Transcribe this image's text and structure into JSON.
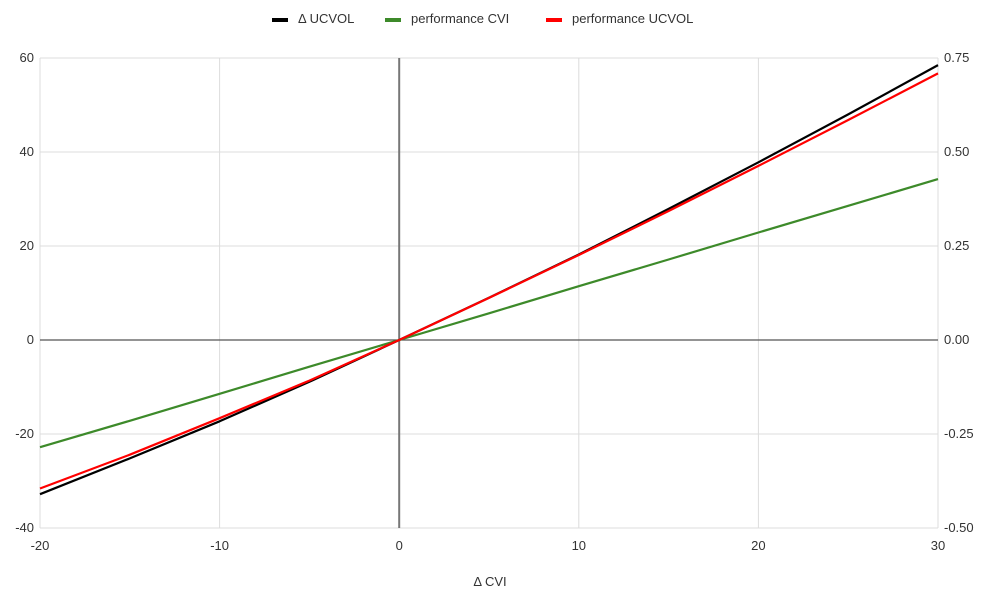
{
  "chart_data": {
    "type": "line",
    "title": "",
    "xlabel": "Δ CVI",
    "ylabel": "",
    "xlim": [
      -20,
      30
    ],
    "ylim": [
      -40,
      60
    ],
    "y2lim": [
      -0.5,
      0.75
    ],
    "x_ticks": [
      -20,
      -10,
      0,
      10,
      20,
      30
    ],
    "x_tick_labels": [
      "-20",
      "-10",
      "0",
      "10",
      "20",
      "30"
    ],
    "y_ticks": [
      -40,
      -20,
      0,
      20,
      40,
      60
    ],
    "y_tick_labels": [
      "-40",
      "-20",
      "0",
      "20",
      "40",
      "60"
    ],
    "y2_ticks": [
      -0.5,
      -0.25,
      0,
      0.25,
      0.5,
      0.75
    ],
    "y2_tick_labels": [
      "-0.50",
      "-0.25",
      "0.00",
      "0.25",
      "0.50",
      "0.75"
    ],
    "grid": true,
    "legend_position": "top-center",
    "series": [
      {
        "name": "Δ UCVOL",
        "color": "#000000",
        "axis": "left",
        "x": [
          -20,
          -15,
          -10,
          -5,
          0,
          5,
          10,
          15,
          20,
          25,
          30
        ],
        "y": [
          -32.8,
          -25.2,
          -17.3,
          -8.9,
          0,
          9.0,
          18.2,
          27.9,
          37.8,
          48.0,
          58.5
        ]
      },
      {
        "name": "performance CVI",
        "color": "#3d8a2a",
        "axis": "right",
        "x": [
          -20,
          -15,
          -10,
          -5,
          0,
          5,
          10,
          15,
          20,
          25,
          30
        ],
        "y": [
          -0.285,
          -0.215,
          -0.143,
          -0.071,
          0,
          0.071,
          0.143,
          0.214,
          0.286,
          0.357,
          0.428
        ]
      },
      {
        "name": "performance UCVOL",
        "color": "#ff0000",
        "axis": "right",
        "x": [
          -20,
          -15,
          -10,
          -5,
          0,
          5,
          10,
          15,
          20,
          25,
          30
        ],
        "y": [
          -0.395,
          -0.305,
          -0.208,
          -0.108,
          0,
          0.112,
          0.226,
          0.343,
          0.463,
          0.585,
          0.709
        ]
      }
    ]
  }
}
